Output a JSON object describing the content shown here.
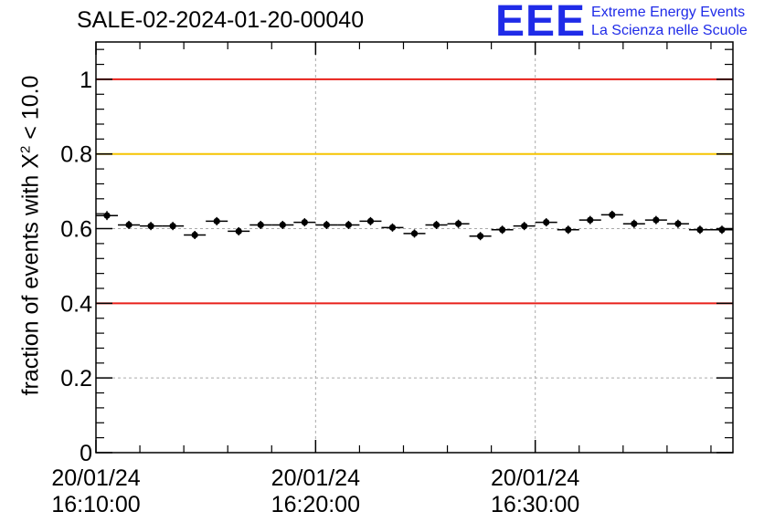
{
  "header": {
    "title": "SALE-02-2024-01-20-00040",
    "logo": {
      "mark": "EEE",
      "line1": "Extreme Energy Events",
      "line2": "La Scienza nelle Scuole",
      "color": "#1f2be8"
    }
  },
  "chart_data": {
    "type": "scatter",
    "title": "SALE-02-2024-01-20-00040",
    "xlabel": "",
    "ylabel": {
      "prefix": "fraction of events with ",
      "symbol": "X",
      "sup": "2",
      "suffix": " < 10.0"
    },
    "ylim": [
      0,
      1.1
    ],
    "xlim_minutes": [
      0,
      29
    ],
    "y_ticks": [
      {
        "value": 0,
        "label": "0"
      },
      {
        "value": 0.2,
        "label": "0.2"
      },
      {
        "value": 0.4,
        "label": "0.4"
      },
      {
        "value": 0.6,
        "label": "0.6"
      },
      {
        "value": 0.8,
        "label": "0.8"
      },
      {
        "value": 1.0,
        "label": "1"
      }
    ],
    "x_ticks": [
      {
        "minutes": 0,
        "date": "20/01/24",
        "time": "16:10:00"
      },
      {
        "minutes": 10,
        "date": "20/01/24",
        "time": "16:20:00"
      },
      {
        "minutes": 20,
        "date": "20/01/24",
        "time": "16:30:00"
      }
    ],
    "grid": true,
    "reference_lines": [
      {
        "y": 1.0,
        "color": "#e8201a"
      },
      {
        "y": 0.8,
        "color": "#f5c400"
      },
      {
        "y": 0.4,
        "color": "#e8201a"
      }
    ],
    "marker_color": "#000000",
    "series": [
      {
        "x_minutes": [
          0.5,
          1.5,
          2.5,
          3.5,
          4.5,
          5.5,
          6.5,
          7.5,
          8.5,
          9.5,
          10.5,
          11.5,
          12.5,
          13.5,
          14.5,
          15.5,
          16.5,
          17.5,
          18.5,
          19.5,
          20.5,
          21.5,
          22.5,
          23.5,
          24.5,
          25.5,
          26.5,
          27.5,
          28.5
        ],
        "values": [
          0.635,
          0.61,
          0.607,
          0.607,
          0.583,
          0.62,
          0.593,
          0.61,
          0.61,
          0.617,
          0.61,
          0.61,
          0.62,
          0.603,
          0.587,
          0.61,
          0.613,
          0.58,
          0.597,
          0.607,
          0.617,
          0.597,
          0.623,
          0.637,
          0.613,
          0.623,
          0.613,
          0.597,
          0.597
        ],
        "errors": [
          0.012,
          0.011,
          0.011,
          0.011,
          0.011,
          0.011,
          0.011,
          0.011,
          0.011,
          0.011,
          0.011,
          0.011,
          0.011,
          0.011,
          0.011,
          0.011,
          0.011,
          0.011,
          0.011,
          0.011,
          0.011,
          0.011,
          0.011,
          0.011,
          0.011,
          0.011,
          0.011,
          0.011,
          0.011
        ]
      }
    ]
  }
}
